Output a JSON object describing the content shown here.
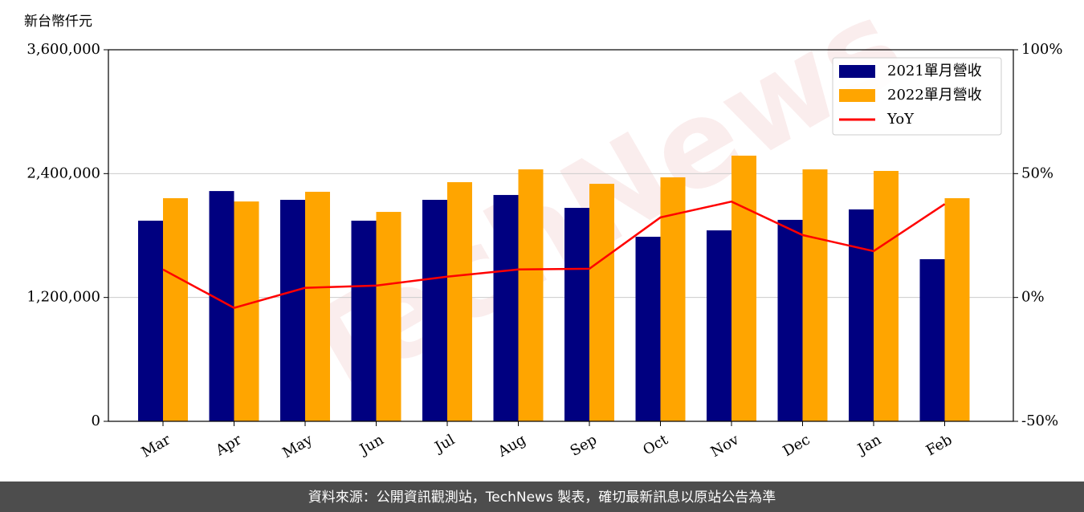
{
  "chart_data": {
    "type": "bar_line",
    "ylabel": "新台幣仟元",
    "watermark": "TechNews",
    "categories": [
      "Mar",
      "Apr",
      "May",
      "Jun",
      "Jul",
      "Aug",
      "Sep",
      "Oct",
      "Nov",
      "Dec",
      "Jan",
      "Feb"
    ],
    "series": [
      {
        "name": "2021單月營收",
        "color": "#000080",
        "type": "bar",
        "values": [
          1944000,
          2231000,
          2146000,
          1944000,
          2146000,
          2193000,
          2068000,
          1788000,
          1850000,
          1952000,
          2053000,
          1571000
        ]
      },
      {
        "name": "2022單月營收",
        "color": "#ffa500",
        "type": "bar",
        "values": [
          2162000,
          2130000,
          2224000,
          2029000,
          2317000,
          2441000,
          2301000,
          2364000,
          2574000,
          2441000,
          2426000,
          2162000
        ]
      },
      {
        "name": "YoY",
        "color": "#ff0000",
        "type": "line",
        "axis": "y2",
        "values": [
          11.3,
          -4.2,
          3.9,
          4.8,
          8.4,
          11.3,
          11.6,
          32.3,
          38.7,
          25.2,
          18.7,
          37.7
        ]
      }
    ],
    "ylim": [
      0,
      3600000
    ],
    "yticks": [
      0,
      {
        "value": 1200000,
        "label": "1,200,000"
      },
      {
        "value": 2400000,
        "label": "2,400,000"
      },
      {
        "value": 3600000,
        "label": "3,600,000"
      }
    ],
    "y2lim": [
      -50,
      100
    ],
    "y2ticks": [
      {
        "value": -50,
        "label": "-50%"
      },
      {
        "value": 0,
        "label": "0%"
      },
      {
        "value": 50,
        "label": "50%"
      },
      {
        "value": 100,
        "label": "100%"
      }
    ],
    "grid": true,
    "legend": "upper right"
  },
  "footer": "資料來源：公開資訊觀測站，TechNews 製表，確切最新訊息以原站公告為準"
}
